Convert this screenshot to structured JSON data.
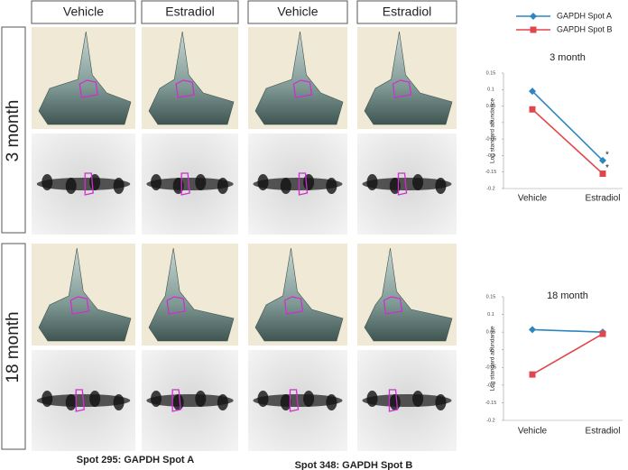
{
  "columns": [
    "Vehicle",
    "Estradiol",
    "Vehicle",
    "Estradiol"
  ],
  "rows": [
    "3 month",
    "18 month"
  ],
  "captions": [
    "Spot 295: GAPDH Spot A",
    "Spot 348: GAPDH Spot B"
  ],
  "chart_data": [
    {
      "type": "line",
      "title": "3 month",
      "y_label": "Log standard abundance",
      "categories": [
        "Vehicle",
        "Estradiol"
      ],
      "series": [
        {
          "name": "GAPDH Spot A",
          "color": "#2e86c1",
          "marker": "diamond",
          "values": [
            0.095,
            -0.115
          ]
        },
        {
          "name": "GAPDH Spot B",
          "color": "#e0474c",
          "marker": "square",
          "values": [
            0.04,
            -0.155
          ]
        }
      ],
      "annotations": [
        "*",
        "*"
      ],
      "ylim": [
        -0.2,
        0.15
      ],
      "yticks": [
        0.15,
        0.1,
        0.05,
        0,
        -0.05,
        -0.1,
        -0.15,
        -0.2
      ]
    },
    {
      "type": "line",
      "title": "18 month",
      "y_label": "Log standard abundance",
      "categories": [
        "Vehicle",
        "Estradiol"
      ],
      "series": [
        {
          "color": "#2e86c1",
          "marker": "diamond",
          "values": [
            0.057,
            0.05
          ]
        },
        {
          "color": "#e0474c",
          "marker": "square",
          "values": [
            -0.07,
            0.045
          ]
        }
      ],
      "ylim": [
        -0.2,
        0.15
      ],
      "yticks": [
        0.15,
        0.1,
        0.05,
        0,
        -0.05,
        -0.1,
        -0.15,
        -0.2
      ]
    }
  ]
}
